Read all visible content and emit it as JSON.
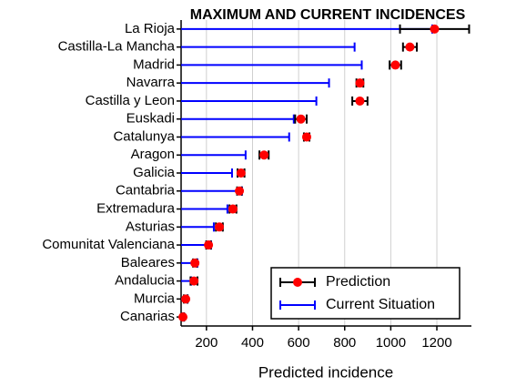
{
  "chart_data": {
    "type": "errorbar_h",
    "title": "MAXIMUM AND CURRENT INCIDENCES",
    "xlabel": "Predicted incidence",
    "categories": [
      "La Rioja",
      "Castilla-La Mancha",
      "Madrid",
      "Navarra",
      "Castilla y Leon",
      "Euskadi",
      "Catalunya",
      "Aragon",
      "Galicia",
      "Cantabria",
      "Extremadura",
      "Asturias",
      "Comunitat Valenciana",
      "Baleares",
      "Andalucia",
      "Murcia",
      "Canarias"
    ],
    "series": [
      {
        "name": "Prediction",
        "color": "#ff0000",
        "error_color": "#000000",
        "values": [
          1190,
          1083,
          1020,
          866,
          866,
          610,
          635,
          450,
          350,
          343,
          315,
          256,
          209,
          150,
          146,
          110,
          98
        ],
        "errors": [
          150,
          30,
          25,
          15,
          33,
          25,
          12,
          20,
          15,
          10,
          15,
          15,
          10,
          8,
          15,
          8,
          5
        ]
      },
      {
        "name": "Current Situation",
        "color": "#0000ff",
        "values": [
          1180,
          843,
          874,
          732,
          677,
          579,
          559,
          370,
          311,
          354,
          291,
          232,
          220,
          161,
          134,
          118,
          102
        ]
      }
    ],
    "xlim": [
      90,
      1350
    ],
    "xticks": [
      200,
      400,
      600,
      800,
      1000,
      1200
    ],
    "grid": true,
    "legend": "lower right"
  }
}
